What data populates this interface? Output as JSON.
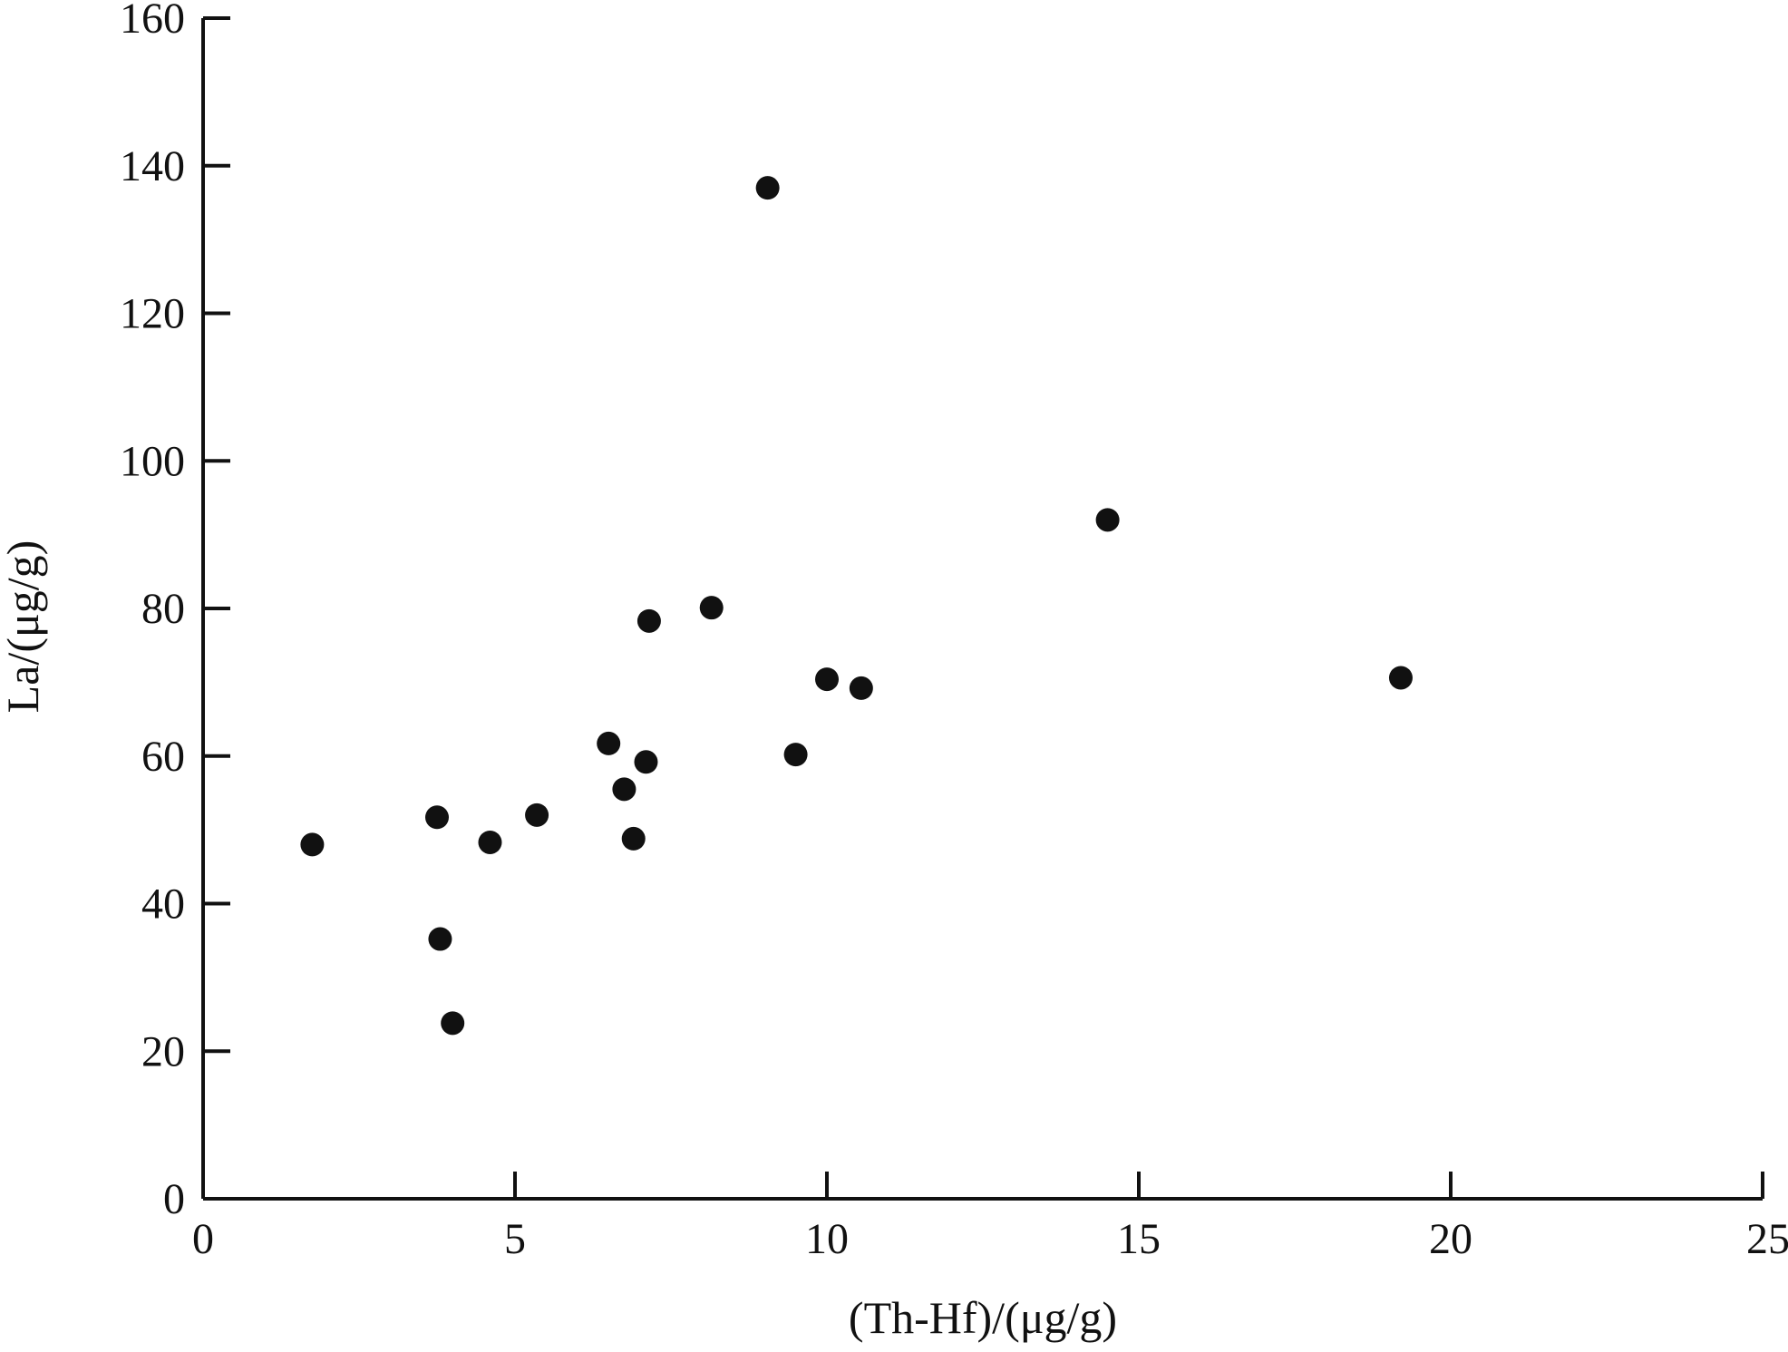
{
  "chart_data": {
    "type": "scatter",
    "xlabel": "(Th-Hf)/(μg/g)",
    "ylabel": "La/(μg/g)",
    "xlim": [
      0,
      25
    ],
    "ylim": [
      0,
      160
    ],
    "x_ticks": [
      0,
      5,
      10,
      15,
      20,
      25
    ],
    "y_ticks": [
      0,
      20,
      40,
      60,
      80,
      100,
      120,
      140,
      160
    ],
    "grid": false,
    "legend": "none",
    "marker_color": "#111111",
    "series": [
      {
        "points": [
          {
            "x": 1.75,
            "y": 48
          },
          {
            "x": 3.75,
            "y": 51.7
          },
          {
            "x": 3.8,
            "y": 35.2
          },
          {
            "x": 4.0,
            "y": 23.8
          },
          {
            "x": 4.6,
            "y": 48.3
          },
          {
            "x": 5.35,
            "y": 52
          },
          {
            "x": 6.5,
            "y": 61.7
          },
          {
            "x": 6.75,
            "y": 55.5
          },
          {
            "x": 6.9,
            "y": 48.8
          },
          {
            "x": 7.1,
            "y": 59.2
          },
          {
            "x": 7.15,
            "y": 78.3
          },
          {
            "x": 8.15,
            "y": 80.1
          },
          {
            "x": 9.05,
            "y": 137
          },
          {
            "x": 9.5,
            "y": 60.2
          },
          {
            "x": 10.0,
            "y": 70.4
          },
          {
            "x": 10.55,
            "y": 69.2
          },
          {
            "x": 14.5,
            "y": 92
          },
          {
            "x": 19.2,
            "y": 70.6
          }
        ]
      }
    ]
  }
}
